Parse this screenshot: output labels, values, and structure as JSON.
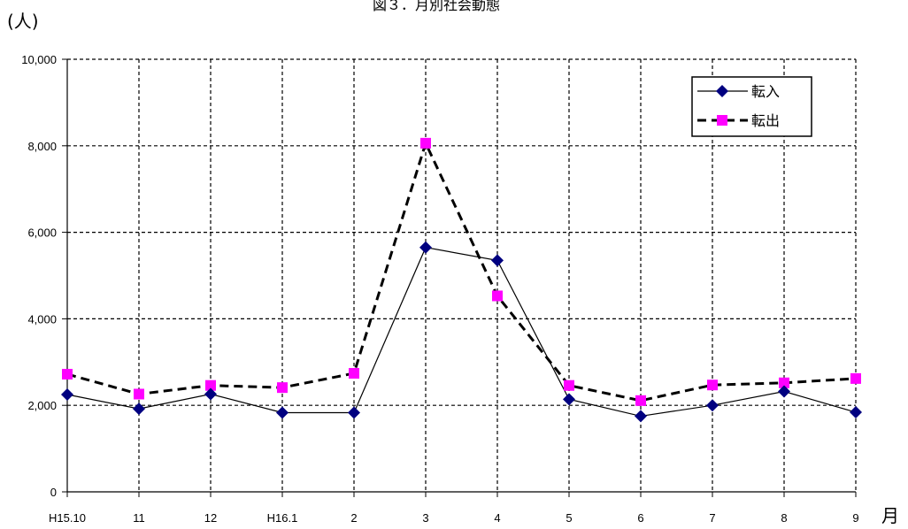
{
  "chart_data": {
    "type": "line",
    "title": "図３．月別社会動態",
    "ylabel": "(人)",
    "xlabel": "月",
    "ylim": [
      0,
      10000
    ],
    "yticks": [
      "0",
      "2,000",
      "4,000",
      "6,000",
      "8,000",
      "10,000"
    ],
    "categories": [
      "H15.10",
      "11",
      "12",
      "H16.1",
      "2",
      "3",
      "4",
      "5",
      "6",
      "7",
      "8",
      "9"
    ],
    "grid": true,
    "legend_position": "top-right",
    "series": [
      {
        "name": "転入",
        "color": "#000080",
        "marker": "diamond",
        "line": "solid",
        "values": [
          2250,
          1920,
          2260,
          1830,
          1830,
          5650,
          5350,
          2140,
          1750,
          2000,
          2320,
          1840
        ]
      },
      {
        "name": "転出",
        "color": "#FF00FF",
        "marker": "square",
        "line": "dashed",
        "values": [
          2720,
          2260,
          2460,
          2410,
          2740,
          8060,
          4530,
          2460,
          2110,
          2470,
          2520,
          2620
        ]
      }
    ]
  }
}
